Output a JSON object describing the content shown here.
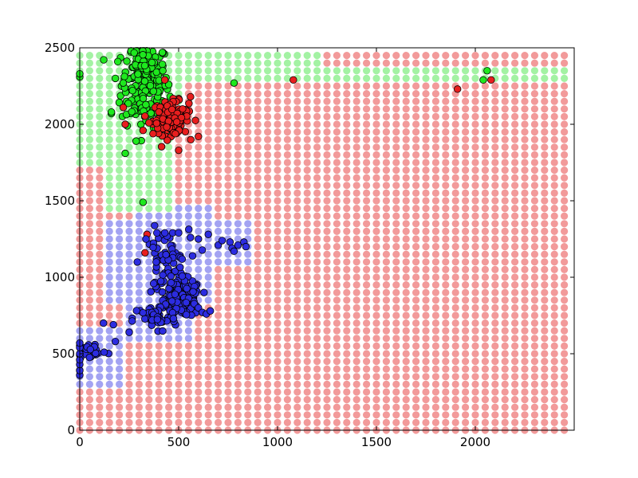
{
  "chart_data": {
    "type": "scatter",
    "title": "",
    "xlabel": "",
    "ylabel": "",
    "xlim": [
      0,
      2500
    ],
    "ylim": [
      0,
      2500
    ],
    "x_ticks": [
      0,
      500,
      1000,
      1500,
      2000
    ],
    "y_ticks": [
      0,
      500,
      1000,
      1500,
      2000,
      2500
    ],
    "grid": false,
    "legend": "none",
    "background_grid": {
      "description_note": "decision-region lattice of light points every 50 units",
      "x_range": [
        0,
        2450
      ],
      "y_range": [
        0,
        2450
      ],
      "step": 50,
      "default_class": "red",
      "regions": [
        {
          "class": "green",
          "x_range": [
            0,
            100
          ],
          "y_range": [
            1750,
            2450
          ]
        },
        {
          "class": "green",
          "x_range": [
            100,
            450
          ],
          "y_range": [
            1800,
            2450
          ]
        },
        {
          "class": "green",
          "x_range": [
            150,
            450
          ],
          "y_range": [
            1450,
            1800
          ]
        },
        {
          "class": "green",
          "x_range": [
            450,
            500
          ],
          "y_range": [
            2150,
            2450
          ]
        },
        {
          "class": "green",
          "x_range": [
            500,
            1200
          ],
          "y_range": [
            2300,
            2450
          ]
        },
        {
          "class": "green",
          "x_range": [
            1200,
            2450
          ],
          "y_range": [
            2300,
            2350
          ]
        },
        {
          "class": "blue",
          "x_range": [
            150,
            650
          ],
          "y_range": [
            850,
            1350
          ]
        },
        {
          "class": "blue",
          "x_range": [
            300,
            650
          ],
          "y_range": [
            1350,
            1450
          ]
        },
        {
          "class": "blue",
          "x_range": [
            650,
            850
          ],
          "y_range": [
            1100,
            1350
          ]
        },
        {
          "class": "blue",
          "x_range": [
            250,
            550
          ],
          "y_range": [
            600,
            850
          ]
        },
        {
          "class": "blue",
          "x_range": [
            0,
            200
          ],
          "y_range": [
            300,
            650
          ]
        }
      ]
    },
    "series": [
      {
        "class": "green",
        "clusters": [
          {
            "cx": 330,
            "cy": 2260,
            "sx": 60,
            "sy": 140,
            "n": 180
          },
          {
            "cx": 320,
            "cy": 2420,
            "sx": 25,
            "sy": 40,
            "n": 35
          }
        ],
        "points": [
          [
            0,
            2310
          ],
          [
            0,
            2330
          ],
          [
            160,
            2070
          ],
          [
            160,
            2080
          ],
          [
            180,
            2300
          ],
          [
            220,
            2270
          ],
          [
            230,
            1810
          ],
          [
            240,
            1990
          ],
          [
            285,
            1890
          ],
          [
            320,
            1490
          ],
          [
            420,
            2350
          ],
          [
            450,
            2260
          ],
          [
            780,
            2270
          ],
          [
            2040,
            2290
          ],
          [
            2060,
            2350
          ]
        ]
      },
      {
        "class": "red",
        "clusters": [
          {
            "cx": 460,
            "cy": 2040,
            "sx": 45,
            "sy": 55,
            "n": 130
          }
        ],
        "points": [
          [
            220,
            2110
          ],
          [
            230,
            2000
          ],
          [
            320,
            1960
          ],
          [
            350,
            2010
          ],
          [
            400,
            2080
          ],
          [
            430,
            2290
          ],
          [
            520,
            2100
          ],
          [
            560,
            2180
          ],
          [
            600,
            1920
          ],
          [
            500,
            1830
          ],
          [
            340,
            1280
          ],
          [
            330,
            1160
          ],
          [
            1080,
            2290
          ],
          [
            1910,
            2230
          ],
          [
            2080,
            2290
          ]
        ]
      },
      {
        "class": "blue",
        "clusters": [
          {
            "cx": 520,
            "cy": 860,
            "sx": 45,
            "sy": 60,
            "n": 170
          },
          {
            "cx": 430,
            "cy": 1090,
            "sx": 60,
            "sy": 110,
            "n": 70
          },
          {
            "cx": 380,
            "cy": 730,
            "sx": 55,
            "sy": 45,
            "n": 40
          },
          {
            "cx": 60,
            "cy": 520,
            "sx": 40,
            "sy": 30,
            "n": 25
          }
        ],
        "points": [
          [
            0,
            360
          ],
          [
            0,
            390
          ],
          [
            0,
            430
          ],
          [
            0,
            460
          ],
          [
            0,
            500
          ],
          [
            0,
            540
          ],
          [
            0,
            570
          ],
          [
            120,
            700
          ],
          [
            170,
            690
          ],
          [
            180,
            580
          ],
          [
            250,
            640
          ],
          [
            390,
            1290
          ],
          [
            430,
            1290
          ],
          [
            470,
            1290
          ],
          [
            500,
            1290
          ],
          [
            560,
            1260
          ],
          [
            600,
            1250
          ],
          [
            650,
            1280
          ],
          [
            700,
            1210
          ],
          [
            720,
            1240
          ],
          [
            760,
            1230
          ],
          [
            770,
            1190
          ],
          [
            800,
            1210
          ],
          [
            830,
            1230
          ],
          [
            840,
            1200
          ],
          [
            780,
            1170
          ],
          [
            600,
            800
          ],
          [
            620,
            770
          ],
          [
            640,
            760
          ],
          [
            660,
            780
          ]
        ]
      }
    ],
    "class_colors": {
      "red": {
        "point": "#e81e1e",
        "region": "#f29a9a"
      },
      "green": {
        "point": "#1ee81e",
        "region": "#a3f2a3"
      },
      "blue": {
        "point": "#2c2ce0",
        "region": "#a3a3f2"
      }
    }
  }
}
